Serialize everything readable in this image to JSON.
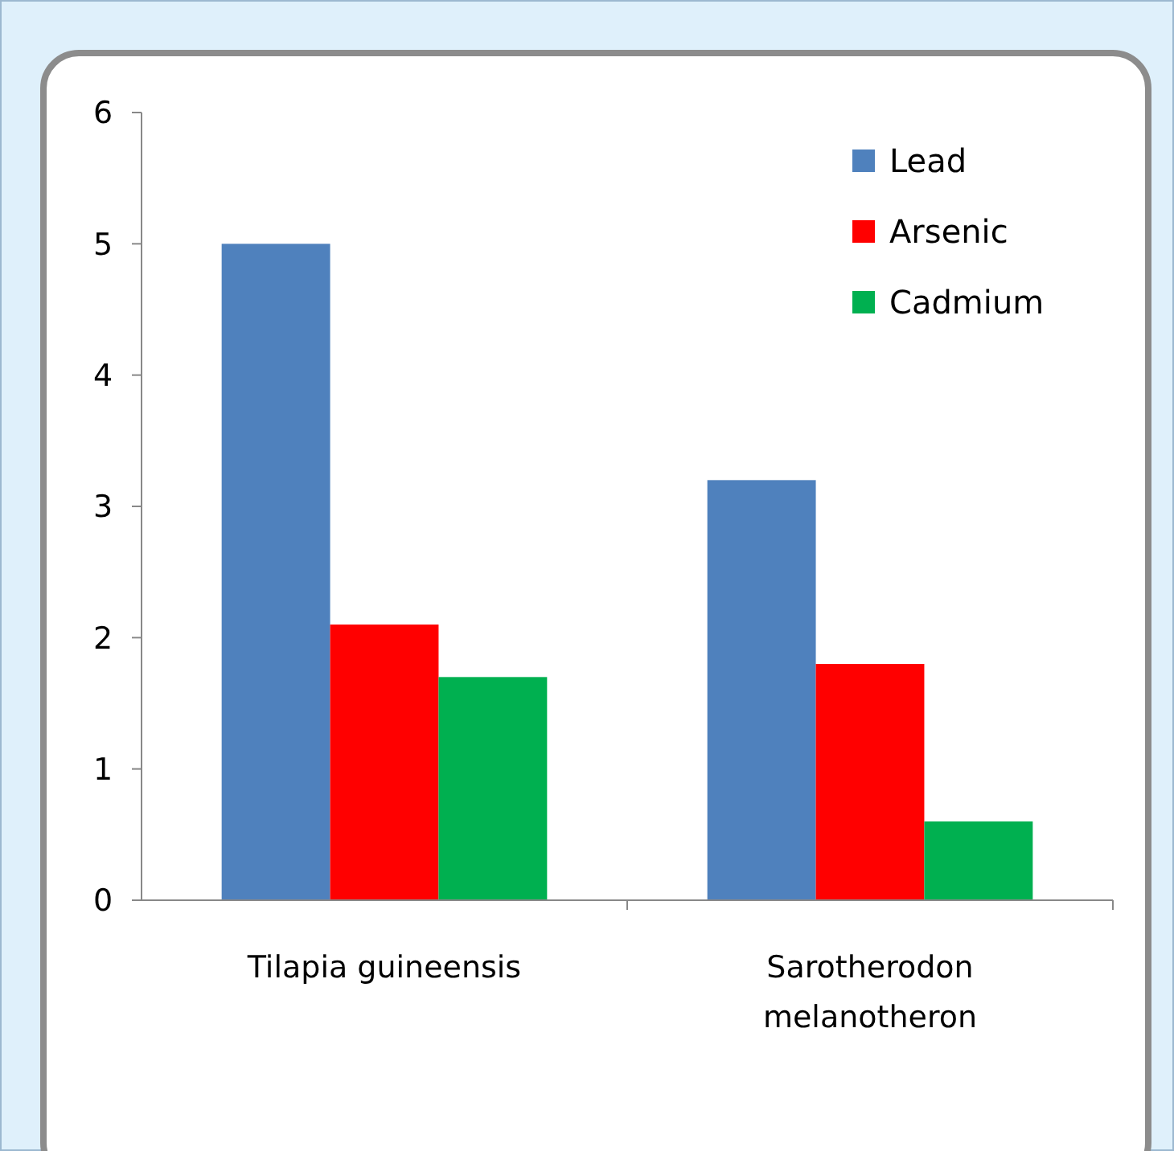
{
  "chart_data": {
    "type": "bar",
    "categories": [
      "Tilapia guineensis",
      "Sarotherodon melanotheron"
    ],
    "series": [
      {
        "name": "Lead",
        "color": "#4f81bd",
        "values": [
          5,
          3.2
        ]
      },
      {
        "name": "Arsenic",
        "color": "#ff0000",
        "values": [
          2.1,
          1.8
        ]
      },
      {
        "name": "Cadmium",
        "color": "#00b050",
        "values": [
          1.7,
          0.6
        ]
      }
    ],
    "ylim": [
      0,
      6
    ],
    "yticks": [
      0,
      1,
      2,
      3,
      4,
      5,
      6
    ],
    "grid": false,
    "legend": "top right"
  }
}
